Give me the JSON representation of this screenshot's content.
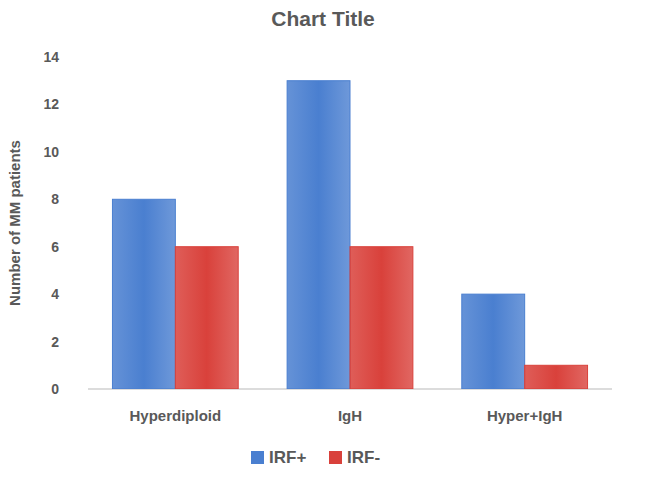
{
  "chart_data": {
    "type": "bar",
    "title": "Chart Title",
    "y_label": "Number of MM patients",
    "categories": [
      "Hyperdiploid",
      "IgH",
      "Hyper+IgH"
    ],
    "series": [
      {
        "name": "IRF+",
        "color": "#4a7fd0",
        "values": [
          8,
          13,
          4
        ]
      },
      {
        "name": "IRF-",
        "color": "#d9413b",
        "values": [
          6,
          6,
          1
        ]
      }
    ],
    "ylim": [
      0,
      14
    ],
    "yticks": [
      0,
      2,
      4,
      6,
      8,
      10,
      12,
      14
    ],
    "grid": false,
    "legend": "bottom"
  }
}
